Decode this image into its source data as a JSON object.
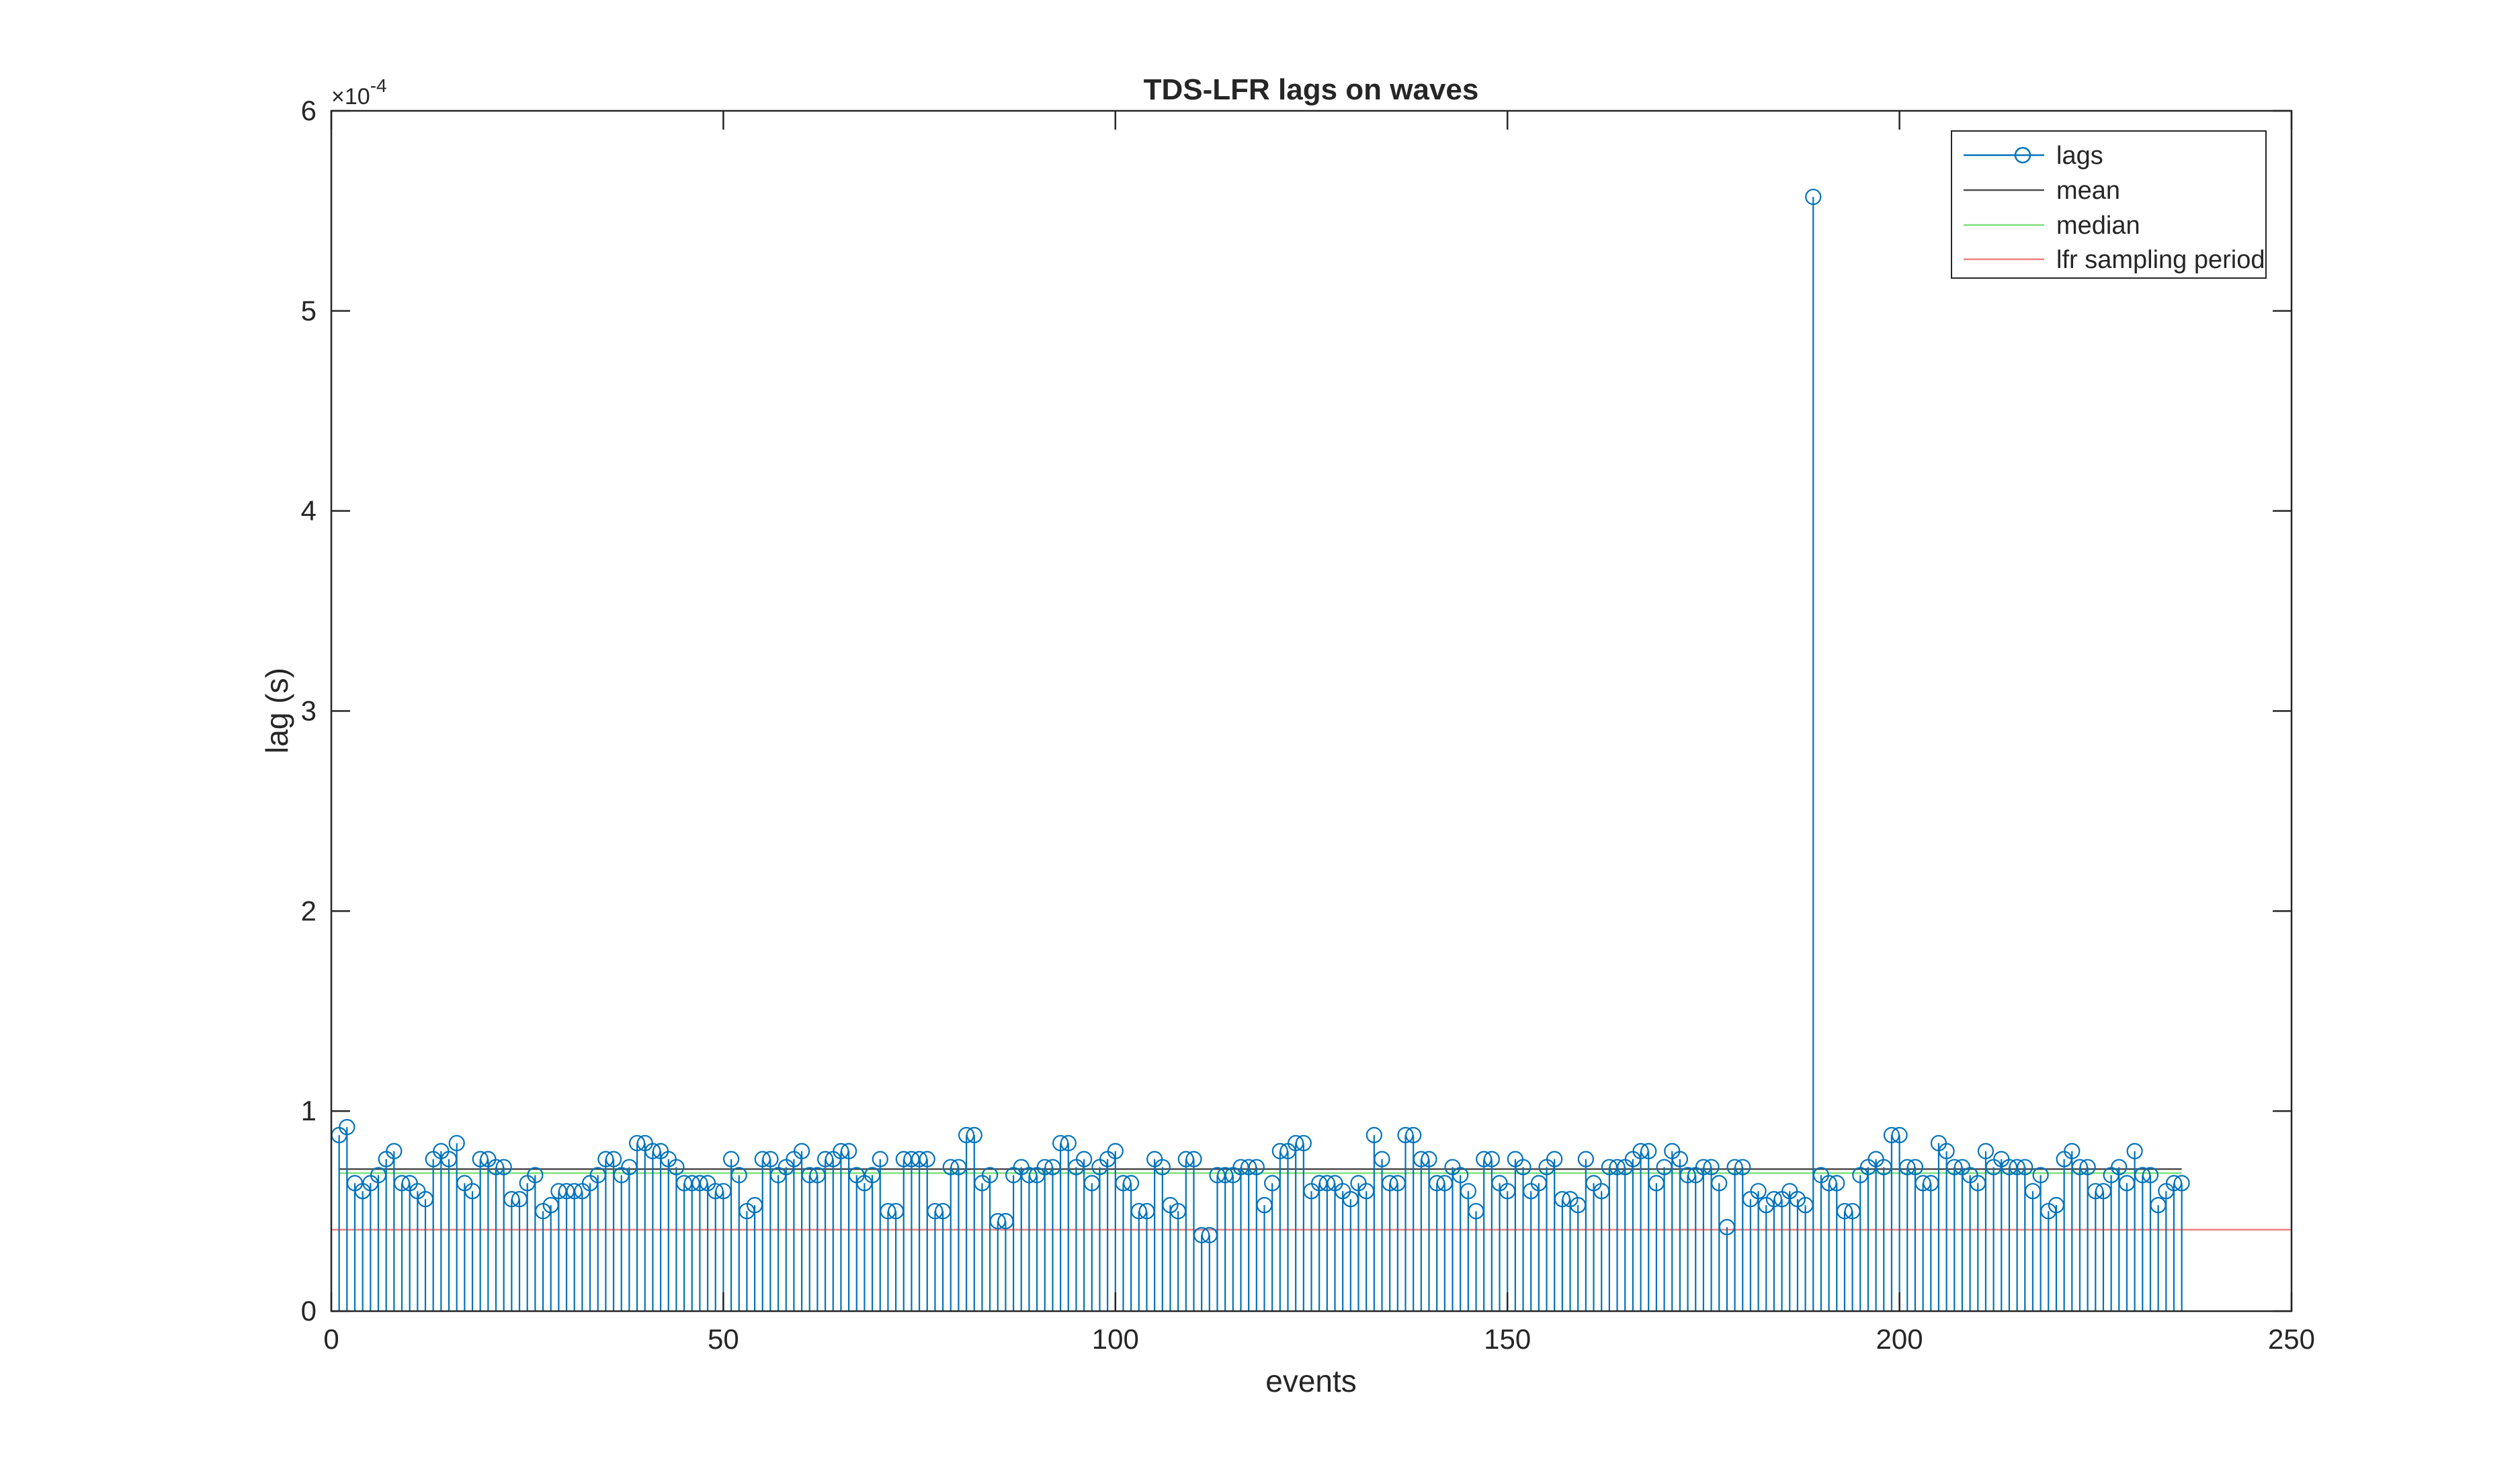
{
  "chart_data": {
    "type": "stem",
    "title": "TDS-LFR lags on waves",
    "xlabel": "events",
    "ylabel": "lag (s)",
    "xlim": [
      0,
      250
    ],
    "ylim": [
      0,
      6
    ],
    "y_multiplier_label": "×10",
    "y_multiplier_exp": "-4",
    "xticks": [
      "0",
      "50",
      "100",
      "150",
      "200",
      "250"
    ],
    "yticks": [
      "0",
      "1",
      "2",
      "3",
      "4",
      "5",
      "6"
    ],
    "x": [
      1,
      2,
      3,
      4,
      5,
      6,
      7,
      8,
      9,
      10,
      11,
      12,
      13,
      14,
      15,
      16,
      17,
      18,
      19,
      20,
      21,
      22,
      23,
      24,
      25,
      26,
      27,
      28,
      29,
      30,
      31,
      32,
      33,
      34,
      35,
      36,
      37,
      38,
      39,
      40,
      41,
      42,
      43,
      44,
      45,
      46,
      47,
      48,
      49,
      50,
      51,
      52,
      53,
      54,
      55,
      56,
      57,
      58,
      59,
      60,
      61,
      62,
      63,
      64,
      65,
      66,
      67,
      68,
      69,
      70,
      71,
      72,
      73,
      74,
      75,
      76,
      77,
      78,
      79,
      80,
      81,
      82,
      83,
      84,
      85,
      86,
      87,
      88,
      89,
      90,
      91,
      92,
      93,
      94,
      95,
      96,
      97,
      98,
      99,
      100,
      101,
      102,
      103,
      104,
      105,
      106,
      107,
      108,
      109,
      110,
      111,
      112,
      113,
      114,
      115,
      116,
      117,
      118,
      119,
      120,
      121,
      122,
      123,
      124,
      125,
      126,
      127,
      128,
      129,
      130,
      131,
      132,
      133,
      134,
      135,
      136,
      137,
      138,
      139,
      140,
      141,
      142,
      143,
      144,
      145,
      146,
      147,
      148,
      149,
      150,
      151,
      152,
      153,
      154,
      155,
      156,
      157,
      158,
      159,
      160,
      161,
      162,
      163,
      164,
      165,
      166,
      167,
      168,
      169,
      170,
      171,
      172,
      173,
      174,
      175,
      176,
      177,
      178,
      179,
      180,
      181,
      182,
      183,
      184,
      185,
      186,
      187,
      188,
      189,
      190,
      191,
      192,
      193,
      194,
      195,
      196,
      197,
      198,
      199,
      200,
      201,
      202,
      203,
      204,
      205,
      206,
      207,
      208,
      209,
      210,
      211,
      212,
      213,
      214,
      215,
      216,
      217,
      218,
      219,
      220,
      221,
      222,
      223,
      224,
      225,
      226,
      227,
      228,
      229,
      230,
      231,
      232,
      233,
      234,
      235,
      236
    ],
    "series": [
      {
        "name": "lags",
        "color": "#0072BD",
        "marker": "circle",
        "values": [
          0.88,
          0.92,
          0.64,
          0.6,
          0.64,
          0.68,
          0.76,
          0.8,
          0.64,
          0.64,
          0.6,
          0.56,
          0.76,
          0.8,
          0.76,
          0.84,
          0.64,
          0.6,
          0.76,
          0.76,
          0.72,
          0.72,
          0.56,
          0.56,
          0.64,
          0.68,
          0.5,
          0.53,
          0.6,
          0.6,
          0.6,
          0.6,
          0.64,
          0.68,
          0.76,
          0.76,
          0.68,
          0.72,
          0.84,
          0.84,
          0.8,
          0.8,
          0.76,
          0.72,
          0.64,
          0.64,
          0.64,
          0.64,
          0.6,
          0.6,
          0.76,
          0.68,
          0.5,
          0.53,
          0.76,
          0.76,
          0.68,
          0.72,
          0.76,
          0.8,
          0.68,
          0.68,
          0.76,
          0.76,
          0.8,
          0.8,
          0.68,
          0.64,
          0.68,
          0.76,
          0.5,
          0.5,
          0.76,
          0.76,
          0.76,
          0.76,
          0.5,
          0.5,
          0.72,
          0.72,
          0.88,
          0.88,
          0.64,
          0.68,
          0.45,
          0.45,
          0.68,
          0.72,
          0.68,
          0.68,
          0.72,
          0.72,
          0.84,
          0.84,
          0.72,
          0.76,
          0.64,
          0.72,
          0.76,
          0.8,
          0.64,
          0.64,
          0.5,
          0.5,
          0.76,
          0.72,
          0.53,
          0.5,
          0.76,
          0.76,
          0.38,
          0.38,
          0.68,
          0.68,
          0.68,
          0.72,
          0.72,
          0.72,
          0.53,
          0.64,
          0.8,
          0.8,
          0.84,
          0.84,
          0.6,
          0.64,
          0.64,
          0.64,
          0.6,
          0.56,
          0.64,
          0.6,
          0.88,
          0.76,
          0.64,
          0.64,
          0.88,
          0.88,
          0.76,
          0.76,
          0.64,
          0.64,
          0.72,
          0.68,
          0.6,
          0.5,
          0.76,
          0.76,
          0.64,
          0.6,
          0.76,
          0.72,
          0.6,
          0.64,
          0.72,
          0.76,
          0.56,
          0.56,
          0.53,
          0.76,
          0.64,
          0.6,
          0.72,
          0.72,
          0.72,
          0.76,
          0.8,
          0.8,
          0.64,
          0.72,
          0.8,
          0.76,
          0.68,
          0.68,
          0.72,
          0.72,
          0.64,
          0.42,
          0.72,
          0.72,
          0.56,
          0.6,
          0.53,
          0.56,
          0.56,
          0.6,
          0.56,
          0.53,
          5.57,
          0.68,
          0.64,
          0.64,
          0.5,
          0.5,
          0.68,
          0.72,
          0.76,
          0.72,
          0.88,
          0.88,
          0.72,
          0.72,
          0.64,
          0.64,
          0.84,
          0.8,
          0.72,
          0.72,
          0.68,
          0.64,
          0.8,
          0.72,
          0.76,
          0.72,
          0.72,
          0.72,
          0.6,
          0.68,
          0.5,
          0.53,
          0.76,
          0.8,
          0.72,
          0.72,
          0.6,
          0.6,
          0.68,
          0.72,
          0.64,
          0.8,
          0.68,
          0.68,
          0.53,
          0.6,
          0.64,
          0.64
        ]
      },
      {
        "name": "mean",
        "color": "#4D4D4D",
        "value": 0.71
      },
      {
        "name": "median",
        "color": "#7FE07F",
        "value": 0.69
      },
      {
        "name": "lfr sampling period",
        "color": "#F08080",
        "value": 0.4069
      }
    ],
    "grid": false,
    "legend_position": "top-right"
  }
}
